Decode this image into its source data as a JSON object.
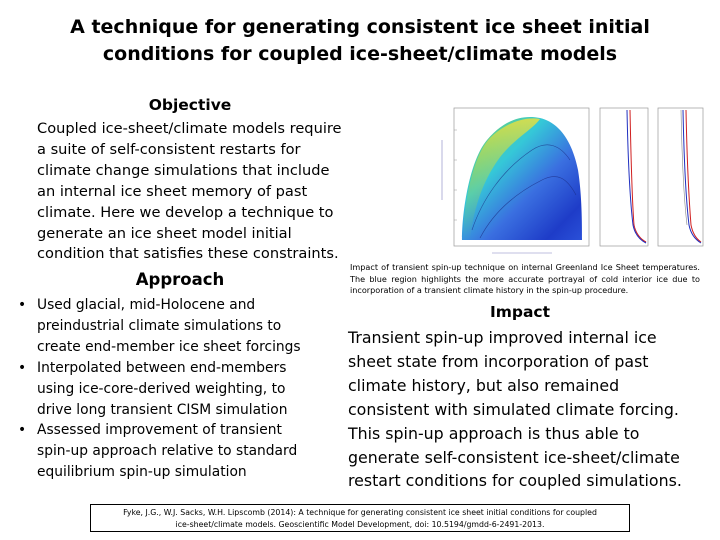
{
  "slide": {
    "title_line1": "A technique for generating consistent ice sheet initial",
    "title_line2": "conditions for coupled ice-sheet/climate models"
  },
  "objective": {
    "heading": "Objective",
    "lines": [
      "Coupled ice-sheet/climate models require",
      "a suite of self-consistent restarts for",
      "climate change simulations that include",
      "an internal ice sheet memory of past",
      "climate.  Here we develop a technique to",
      "generate an ice sheet model initial",
      "condition that satisfies these constraints."
    ]
  },
  "approach": {
    "heading": "Approach",
    "bullets": [
      {
        "lines": [
          "Used glacial, mid-Holocene and",
          "preindustrial climate simulations to",
          "create end-member ice sheet forcings"
        ]
      },
      {
        "lines": [
          "Interpolated between end-members",
          "using ice-core-derived weighting, to",
          "drive long transient CISM simulation"
        ]
      },
      {
        "lines": [
          "Assessed improvement of transient",
          "spin-up approach relative to standard",
          "equilibrium spin-up simulation"
        ]
      }
    ]
  },
  "figure": {
    "caption": "Impact of transient spin-up technique on internal Greenland Ice Sheet temperatures. The blue region highlights the more accurate portrayal of cold interior ice due to incorporation of a transient climate history in the spin-up procedure.",
    "colors": {
      "cold": "#1e3cc8",
      "mid": "#35c8d8",
      "warm": "#7fd650",
      "hot": "#e8e040",
      "line_red": "#d02020",
      "line_blue": "#2030c0"
    }
  },
  "impact": {
    "heading": "Impact",
    "lines": [
      "Transient spin-up improved internal ice",
      "sheet state from incorporation of past",
      "climate history, but also remained",
      "consistent with simulated climate forcing.",
      "This spin-up approach is thus able to",
      "generate self-consistent ice-sheet/climate",
      "restart conditions for coupled simulations."
    ]
  },
  "citation": {
    "line1": "Fyke, J.G., W.J. Sacks, W.H. Lipscomb (2014): A technique for generating consistent ice sheet initial conditions for coupled",
    "line2": "ice-sheet/climate models.  Geoscientific Model Development, doi: 10.5194/gmdd-6-2491-2013."
  }
}
